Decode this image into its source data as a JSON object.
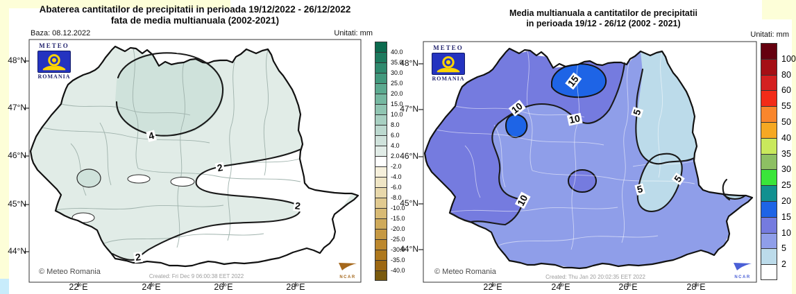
{
  "colors": {
    "canvas_edge": "#FDFED8",
    "corner_blue": "#C8ECFB",
    "left_map_base": "#e1ece7",
    "left_map_band_4_6": "#cfe2db",
    "right_map_base": "#8f9ee9",
    "right_map_band_10_15": "#757bdf",
    "right_map_band_15_20": "#1e64e6",
    "right_map_band_2_5": "#bcdbea",
    "contour_line": "#1a1a1a",
    "logo_blue": "#2433c0",
    "logo_yellow": "#ffd400",
    "ncar_brown": "#a5681c",
    "ncar_blue": "#4a5fd6"
  },
  "left_panel": {
    "title_line1": "Abaterea cantitatilor de precipitatii in perioada 19/12/2022 - 26/12/2022",
    "title_line2": "fata de media multianuala (2002-2021)",
    "baza": "Baza: 08.12.2022",
    "units": "Unitati: mm",
    "logo_top": "METEO",
    "logo_bottom": "ROMANIA",
    "copyright": "© Meteo Romania",
    "created": "Created: Fri Dec 9 06:00:38 EET 2022",
    "ncar": "NCAR",
    "y_ticks": [
      "48°N",
      "47°N",
      "46°N",
      "45°N",
      "44°N"
    ],
    "x_ticks": [
      "22°E",
      "24°E",
      "26°E",
      "28°E"
    ],
    "contour_labels": [
      "4",
      "2",
      "2",
      "2"
    ],
    "colorbar_labels": [
      "40.0",
      "35.0",
      "30.0",
      "25.0",
      "20.0",
      "15.0",
      "10.0",
      "8.0",
      "6.0",
      "4.0",
      "2.0",
      "-2.0",
      "-4.0",
      "-6.0",
      "-8.0",
      "-10.0",
      "-15.0",
      "-20.0",
      "-25.0",
      "-30.0",
      "-35.0",
      "-40.0"
    ],
    "colorbar_colors": [
      "#0c6b4f",
      "#1d7a5e",
      "#2f8a6e",
      "#42997d",
      "#5caa90",
      "#76b8a1",
      "#90c5b2",
      "#a8d0c2",
      "#bcd9cf",
      "#cfe2db",
      "#e1ece7",
      "#ffffff",
      "#f6f0dc",
      "#efe5c5",
      "#e8d8ab",
      "#e1ca90",
      "#d8ba74",
      "#cfaa5a",
      "#c69943",
      "#bc882e",
      "#ae781d",
      "#9d6812",
      "#7a5a0e"
    ]
  },
  "right_panel": {
    "title_line1": "Media multianuala a cantitatilor de precipitatii",
    "title_line2": "in perioada 19/12 - 26/12 (2002 - 2021)",
    "units": "Unitati: mm",
    "logo_top": "METEO",
    "logo_bottom": "ROMANIA",
    "copyright": "© Meteo Romania",
    "created": "Created: Thu Jan 20 20:02:35 EET 2022",
    "ncar": "NCAR",
    "y_ticks": [
      "48°N",
      "47°N",
      "46°N",
      "45°N",
      "44°N"
    ],
    "x_ticks": [
      "22°E",
      "24°E",
      "26°E",
      "28°E"
    ],
    "contour_labels": [
      "15",
      "10",
      "10",
      "5",
      "10",
      "5",
      "5"
    ],
    "colorbar_labels": [
      "100",
      "80",
      "60",
      "55",
      "50",
      "40",
      "35",
      "30",
      "25",
      "20",
      "15",
      "10",
      "5",
      "2"
    ],
    "colorbar_colors": [
      "#65000f",
      "#a50f15",
      "#d42020",
      "#f22b18",
      "#f9862c",
      "#f5a823",
      "#c9e95c",
      "#8dc063",
      "#3ae53a",
      "#129090",
      "#1e64e6",
      "#757bdf",
      "#8f9ee9",
      "#bcdbea",
      "#ffffff"
    ]
  },
  "map_data": {
    "region": "Romania",
    "left_map": {
      "quantity": "precipitation deviation from multiannual mean",
      "period": "19/12/2022 - 26/12/2022",
      "reference": "2002-2021",
      "units": "mm",
      "scale_min": -40,
      "scale_max": 40
    },
    "right_map": {
      "quantity": "multiannual mean precipitation",
      "period": "19/12 - 26/12 (2002 - 2021)",
      "units": "mm",
      "scale_min": 2,
      "scale_max": 100
    }
  }
}
